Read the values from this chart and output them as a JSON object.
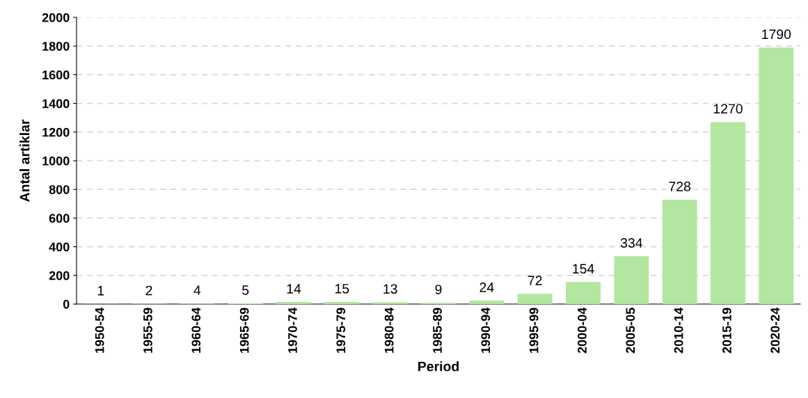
{
  "chart_data": {
    "type": "bar",
    "xlabel": "Period",
    "ylabel": "Antal artiklar",
    "categories": [
      "1950-54",
      "1955-59",
      "1960-64",
      "1965-69",
      "1970-74",
      "1975-79",
      "1980-84",
      "1985-89",
      "1990-94",
      "1995-99",
      "2000-04",
      "2005-05",
      "2010-14",
      "2015-19",
      "2020-24"
    ],
    "values": [
      1,
      2,
      4,
      5,
      14,
      15,
      13,
      9,
      24,
      72,
      154,
      334,
      728,
      1270,
      1790
    ],
    "color": "#b3e6a1",
    "ylim": [
      0,
      2000
    ],
    "yticks": [
      0,
      200,
      400,
      600,
      800,
      1000,
      1200,
      1400,
      1600,
      1800,
      2000
    ],
    "grid": "y",
    "data_labels": true
  }
}
